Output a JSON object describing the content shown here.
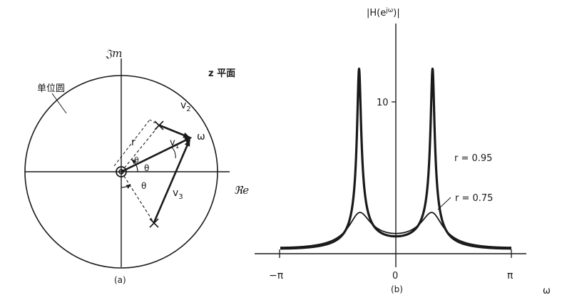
{
  "panel_a": {
    "imag_axis_label": "𝔍m",
    "real_axis_label": "ℜe",
    "plane_label": "z 平面",
    "unit_circle_label": "单位圆",
    "v1_label": "v",
    "v1_sub": "1",
    "v2_label": "v",
    "v2_sub": "2",
    "v3_label": "v",
    "v3_sub": "3",
    "omega_label": "ω",
    "r_label": "r",
    "theta_upper": "θ",
    "theta_lower": "θ",
    "theta_mid": "θ",
    "caption": "(a)"
  },
  "panel_b": {
    "ylabel_text": "|H(e",
    "ylabel_sup": "jω",
    "ylabel_end": ")|",
    "xlabel": "ω",
    "ytick_10": "10",
    "xtick_neg_pi": "−π",
    "xtick_zero": "0",
    "xtick_pi": "π",
    "label_r095": "r = 0.95",
    "label_r075": "r = 0.75",
    "caption": "(b)"
  },
  "chart_data": {
    "type": "line",
    "xlabel": "ω",
    "ylabel": "|H(e^{jω})|",
    "xlim": [
      -3.1416,
      3.1416
    ],
    "ylim": [
      0,
      16
    ],
    "theta": 1.0,
    "series": [
      {
        "name": "r = 0.95",
        "r": 0.95
      },
      {
        "name": "r = 0.75",
        "r": 0.75
      }
    ],
    "annotations": [
      "r = 0.95",
      "r = 0.75"
    ]
  }
}
